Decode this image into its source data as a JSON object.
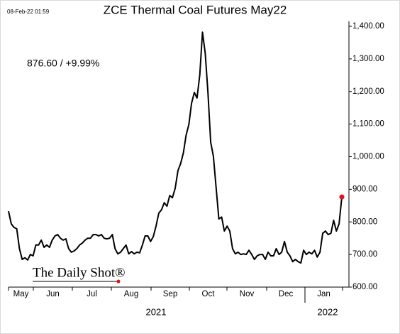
{
  "chart_data": {
    "type": "line",
    "title": "ZCE Thermal Coal Futures May22",
    "timestamp": "08-Feb-22 01:59",
    "annotation": "876.60  /  +9.99%",
    "logo": "The Daily Shot®",
    "months": [
      "May",
      "Jun",
      "Jul",
      "Aug",
      "Sep",
      "Oct",
      "Nov",
      "Dec",
      "Jan"
    ],
    "years": [
      "2021",
      "2022"
    ],
    "series": [
      {
        "color": "#000000",
        "last_point_color": "#e0141e",
        "values": [
          833,
          794,
          783,
          779,
          718,
          685,
          690,
          683,
          700,
          696,
          729,
          729,
          744,
          722,
          729,
          722,
          744,
          757,
          761,
          750,
          744,
          748,
          718,
          707,
          711,
          718,
          729,
          735,
          744,
          750,
          750,
          761,
          761,
          757,
          761,
          750,
          748,
          750,
          761,
          718,
          702,
          707,
          718,
          729,
          702,
          709,
          702,
          707,
          705,
          729,
          757,
          757,
          740,
          755,
          787,
          827,
          837,
          859,
          848,
          881,
          874,
          903,
          957,
          979,
          1012,
          1066,
          1099,
          1164,
          1197,
          1180,
          1251,
          1382,
          1317,
          1197,
          1044,
          1001,
          903,
          809,
          815,
          772,
          787,
          772,
          718,
          702,
          707,
          700,
          702,
          700,
          713,
          700,
          685,
          696,
          700,
          700,
          685,
          707,
          696,
          696,
          718,
          700,
          707,
          740,
          707,
          696,
          678,
          685,
          678,
          674,
          713,
          700,
          707,
          702,
          713,
          692,
          707,
          765,
          772,
          761,
          765,
          805,
          772,
          794,
          876.6
        ]
      }
    ],
    "ylim": [
      600,
      1400
    ],
    "yticks": [
      {
        "value": 600,
        "label": "600.00"
      },
      {
        "value": 700,
        "label": "700.00"
      },
      {
        "value": 800,
        "label": "800.00"
      },
      {
        "value": 900,
        "label": "900.00"
      },
      {
        "value": 1000,
        "label": "1,000.00"
      },
      {
        "value": 1100,
        "label": "1,100.00"
      },
      {
        "value": 1200,
        "label": "1,200.00"
      },
      {
        "value": 1300,
        "label": "1,300.00"
      },
      {
        "value": 1400,
        "label": "1,400.00"
      }
    ],
    "y_axis_side": "right",
    "grid": false
  }
}
